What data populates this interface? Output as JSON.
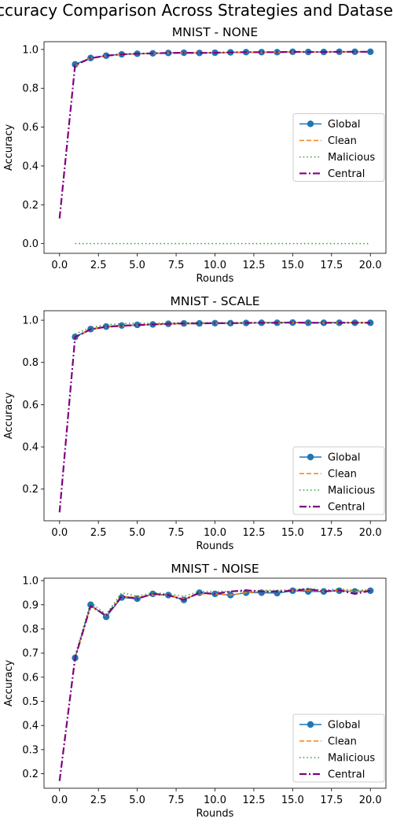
{
  "figure": {
    "suptitle": "Accuracy Comparison Across Strategies and Datasets"
  },
  "chart_data": [
    {
      "type": "line",
      "title": "MNIST - NONE",
      "xlabel": "Rounds",
      "ylabel": "Accuracy",
      "xlim": [
        -1.0,
        21.0
      ],
      "ylim": [
        -0.05,
        1.04
      ],
      "xticks": [
        0.0,
        2.5,
        5.0,
        7.5,
        10.0,
        12.5,
        15.0,
        17.5,
        20.0
      ],
      "xtick_labels": [
        "0.0",
        "2.5",
        "5.0",
        "7.5",
        "10.0",
        "12.5",
        "15.0",
        "17.5",
        "20.0"
      ],
      "yticks": [
        0.0,
        0.2,
        0.4,
        0.6,
        0.8,
        1.0
      ],
      "ytick_labels": [
        "0.0",
        "0.2",
        "0.4",
        "0.6",
        "0.8",
        "1.0"
      ],
      "legend_position": "center-right",
      "series": [
        {
          "name": "Global",
          "color": "#1f77b4",
          "style": "solid-marker",
          "x": [
            1,
            2,
            3,
            4,
            5,
            6,
            7,
            8,
            9,
            10,
            11,
            12,
            13,
            14,
            15,
            16,
            17,
            18,
            19,
            20
          ],
          "y": [
            0.923,
            0.956,
            0.968,
            0.975,
            0.978,
            0.98,
            0.982,
            0.983,
            0.982,
            0.983,
            0.985,
            0.986,
            0.986,
            0.986,
            0.988,
            0.987,
            0.987,
            0.988,
            0.988,
            0.988
          ]
        },
        {
          "name": "Clean",
          "color": "#ff7f0e",
          "style": "dashed",
          "x": [
            1,
            2,
            3,
            4,
            5,
            6,
            7,
            8,
            9,
            10,
            11,
            12,
            13,
            14,
            15,
            16,
            17,
            18,
            19,
            20
          ],
          "y": [
            0.915,
            0.955,
            0.967,
            0.974,
            0.977,
            0.979,
            0.981,
            0.982,
            0.982,
            0.983,
            0.984,
            0.985,
            0.985,
            0.986,
            0.987,
            0.987,
            0.987,
            0.987,
            0.988,
            0.988
          ]
        },
        {
          "name": "Malicious",
          "color": "#2ca02c",
          "style": "dotted",
          "x": [
            1,
            2,
            3,
            4,
            5,
            6,
            7,
            8,
            9,
            10,
            11,
            12,
            13,
            14,
            15,
            16,
            17,
            18,
            19,
            20
          ],
          "y": [
            0,
            0,
            0,
            0,
            0,
            0,
            0,
            0,
            0,
            0,
            0,
            0,
            0,
            0,
            0,
            0,
            0,
            0,
            0,
            0
          ]
        },
        {
          "name": "Central",
          "color": "#800080",
          "style": "dashdot",
          "x": [
            0,
            1,
            2,
            3,
            4,
            5,
            6,
            7,
            8,
            9,
            10,
            11,
            12,
            13,
            14,
            15,
            16,
            17,
            18,
            19,
            20
          ],
          "y": [
            0.13,
            0.92,
            0.955,
            0.968,
            0.975,
            0.978,
            0.98,
            0.982,
            0.983,
            0.982,
            0.983,
            0.985,
            0.986,
            0.986,
            0.986,
            0.988,
            0.987,
            0.987,
            0.988,
            0.988,
            0.988
          ]
        }
      ]
    },
    {
      "type": "line",
      "title": "MNIST - SCALE",
      "xlabel": "Rounds",
      "ylabel": "Accuracy",
      "xlim": [
        -1.0,
        21.0
      ],
      "ylim": [
        0.05,
        1.045
      ],
      "xticks": [
        0.0,
        2.5,
        5.0,
        7.5,
        10.0,
        12.5,
        15.0,
        17.5,
        20.0
      ],
      "xtick_labels": [
        "0.0",
        "2.5",
        "5.0",
        "7.5",
        "10.0",
        "12.5",
        "15.0",
        "17.5",
        "20.0"
      ],
      "yticks": [
        0.2,
        0.4,
        0.6,
        0.8,
        1.0
      ],
      "ytick_labels": [
        "0.2",
        "0.4",
        "0.6",
        "0.8",
        "1.0"
      ],
      "legend_position": "lower-right",
      "series": [
        {
          "name": "Global",
          "color": "#1f77b4",
          "style": "solid-marker",
          "x": [
            1,
            2,
            3,
            4,
            5,
            6,
            7,
            8,
            9,
            10,
            11,
            12,
            13,
            14,
            15,
            16,
            17,
            18,
            19,
            20
          ],
          "y": [
            0.921,
            0.958,
            0.97,
            0.975,
            0.978,
            0.98,
            0.983,
            0.985,
            0.985,
            0.986,
            0.986,
            0.987,
            0.988,
            0.988,
            0.989,
            0.988,
            0.988,
            0.988,
            0.988,
            0.988
          ]
        },
        {
          "name": "Clean",
          "color": "#ff7f0e",
          "style": "dashed",
          "x": [
            1,
            2,
            3,
            4,
            5,
            6,
            7,
            8,
            9,
            10,
            11,
            12,
            13,
            14,
            15,
            16,
            17,
            18,
            19,
            20
          ],
          "y": [
            0.918,
            0.955,
            0.967,
            0.972,
            0.976,
            0.979,
            0.981,
            0.983,
            0.984,
            0.985,
            0.985,
            0.986,
            0.987,
            0.987,
            0.988,
            0.987,
            0.987,
            0.988,
            0.988,
            0.988
          ]
        },
        {
          "name": "Malicious",
          "color": "#2ca02c",
          "style": "dotted",
          "x": [
            1,
            2,
            3,
            4,
            5,
            6,
            7,
            8,
            9,
            10,
            11,
            12,
            13,
            14,
            15,
            16,
            17,
            18,
            19,
            20
          ],
          "y": [
            0.935,
            0.966,
            0.978,
            0.984,
            0.986,
            0.985,
            0.987,
            0.989,
            0.988,
            0.989,
            0.988,
            0.989,
            0.99,
            0.99,
            0.991,
            0.989,
            0.99,
            0.99,
            0.99,
            0.99
          ]
        },
        {
          "name": "Central",
          "color": "#800080",
          "style": "dashdot",
          "x": [
            0,
            1,
            2,
            3,
            4,
            5,
            6,
            7,
            8,
            9,
            10,
            11,
            12,
            13,
            14,
            15,
            16,
            17,
            18,
            19,
            20
          ],
          "y": [
            0.09,
            0.92,
            0.957,
            0.969,
            0.974,
            0.977,
            0.98,
            0.983,
            0.985,
            0.985,
            0.986,
            0.986,
            0.987,
            0.988,
            0.988,
            0.989,
            0.988,
            0.988,
            0.988,
            0.988,
            0.988
          ]
        }
      ]
    },
    {
      "type": "line",
      "title": "MNIST - NOISE",
      "xlabel": "Rounds",
      "ylabel": "Accuracy",
      "xlim": [
        -1.0,
        21.0
      ],
      "ylim": [
        0.14,
        1.01
      ],
      "xticks": [
        0.0,
        2.5,
        5.0,
        7.5,
        10.0,
        12.5,
        15.0,
        17.5,
        20.0
      ],
      "xtick_labels": [
        "0.0",
        "2.5",
        "5.0",
        "7.5",
        "10.0",
        "12.5",
        "15.0",
        "17.5",
        "20.0"
      ],
      "yticks": [
        0.2,
        0.3,
        0.4,
        0.5,
        0.6,
        0.7,
        0.8,
        0.9,
        1.0
      ],
      "ytick_labels": [
        "0.2",
        "0.3",
        "0.4",
        "0.5",
        "0.6",
        "0.7",
        "0.8",
        "0.9",
        "1.0"
      ],
      "legend_position": "lower-right",
      "series": [
        {
          "name": "Global",
          "color": "#1f77b4",
          "style": "solid-marker",
          "x": [
            1,
            2,
            3,
            4,
            5,
            6,
            7,
            8,
            9,
            10,
            11,
            12,
            13,
            14,
            15,
            16,
            17,
            18,
            19,
            20
          ],
          "y": [
            0.68,
            0.9,
            0.85,
            0.93,
            0.925,
            0.945,
            0.94,
            0.92,
            0.95,
            0.945,
            0.94,
            0.95,
            0.95,
            0.948,
            0.958,
            0.955,
            0.955,
            0.958,
            0.955,
            0.958
          ]
        },
        {
          "name": "Clean",
          "color": "#ff7f0e",
          "style": "dashed",
          "x": [
            1,
            2,
            3,
            4,
            5,
            6,
            7,
            8,
            9,
            10,
            11,
            12,
            13,
            14,
            15,
            16,
            17,
            18,
            19,
            20
          ],
          "y": [
            0.68,
            0.895,
            0.855,
            0.935,
            0.93,
            0.94,
            0.94,
            0.925,
            0.945,
            0.945,
            0.94,
            0.95,
            0.955,
            0.955,
            0.958,
            0.96,
            0.955,
            0.96,
            0.955,
            0.958
          ]
        },
        {
          "name": "Malicious",
          "color": "#2ca02c",
          "style": "dotted",
          "x": [
            1,
            2,
            3,
            4,
            5,
            6,
            7,
            8,
            9,
            10,
            11,
            12,
            13,
            14,
            15,
            16,
            17,
            18,
            19,
            20
          ],
          "y": [
            0.69,
            0.91,
            0.86,
            0.95,
            0.935,
            0.95,
            0.945,
            0.935,
            0.955,
            0.955,
            0.955,
            0.955,
            0.96,
            0.96,
            0.962,
            0.968,
            0.96,
            0.965,
            0.96,
            0.962
          ]
        },
        {
          "name": "Central",
          "color": "#800080",
          "style": "dashdot",
          "x": [
            0,
            1,
            2,
            3,
            4,
            5,
            6,
            7,
            8,
            9,
            10,
            11,
            12,
            13,
            14,
            15,
            16,
            17,
            18,
            19,
            20
          ],
          "y": [
            0.17,
            0.68,
            0.895,
            0.855,
            0.935,
            0.925,
            0.945,
            0.94,
            0.92,
            0.95,
            0.945,
            0.955,
            0.96,
            0.955,
            0.955,
            0.958,
            0.965,
            0.955,
            0.96,
            0.945,
            0.958
          ]
        }
      ]
    }
  ]
}
